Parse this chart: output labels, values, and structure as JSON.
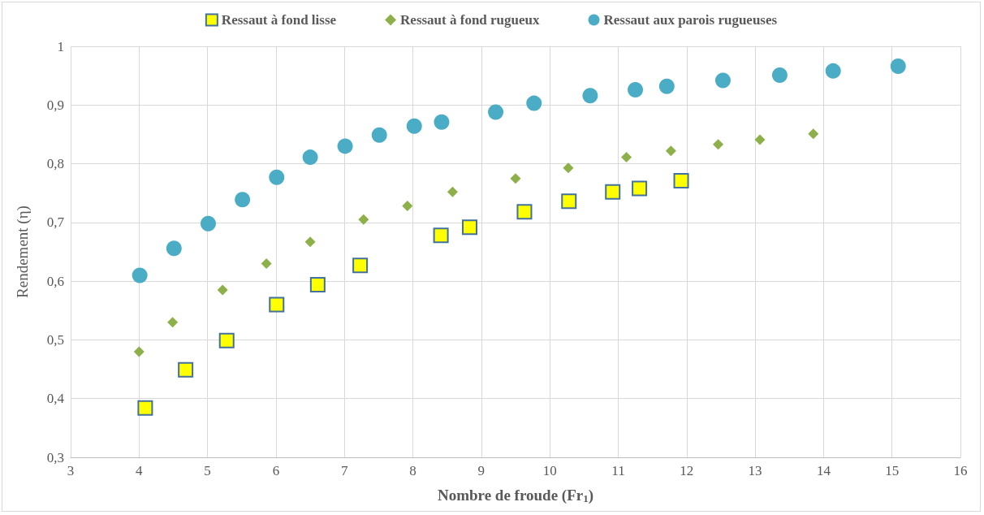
{
  "chart_data": {
    "type": "scatter",
    "xlabel": "Nombre de froude (Fr$_{1}$)",
    "ylabel": "Rendement (η)",
    "series": [
      {
        "name": "Ressaut à fond lisse",
        "color": "#ffff00",
        "marker": "square",
        "x": [
          4.09,
          4.68,
          5.28,
          6.01,
          6.61,
          7.23,
          8.41,
          8.83,
          9.63,
          10.28,
          10.92,
          11.31,
          11.92
        ],
        "values": [
          0.384,
          0.449,
          0.499,
          0.56,
          0.594,
          0.627,
          0.678,
          0.692,
          0.718,
          0.736,
          0.752,
          0.758,
          0.771
        ]
      },
      {
        "name": "Ressaut à fond rugueux",
        "color": "#8db04a",
        "marker": "diamond",
        "x": [
          4.0,
          4.49,
          5.22,
          5.86,
          6.5,
          7.28,
          7.92,
          8.58,
          9.5,
          10.27,
          11.12,
          11.77,
          12.46,
          13.07,
          13.85
        ],
        "values": [
          0.48,
          0.53,
          0.585,
          0.63,
          0.667,
          0.705,
          0.728,
          0.752,
          0.775,
          0.793,
          0.811,
          0.822,
          0.833,
          0.841,
          0.851
        ]
      },
      {
        "name": "Ressaut aux parois rugueuses",
        "color": "#4bacc6",
        "marker": "circle",
        "x": [
          4.01,
          4.51,
          5.01,
          5.51,
          6.01,
          6.5,
          7.01,
          7.51,
          8.02,
          8.42,
          9.21,
          9.77,
          10.59,
          11.25,
          11.71,
          12.53,
          13.36,
          14.14,
          15.09
        ],
        "values": [
          0.61,
          0.656,
          0.698,
          0.739,
          0.777,
          0.811,
          0.83,
          0.849,
          0.864,
          0.871,
          0.888,
          0.903,
          0.916,
          0.926,
          0.932,
          0.942,
          0.951,
          0.958,
          0.966
        ]
      }
    ],
    "xlim": [
      3,
      16
    ],
    "xticks": [
      3,
      4,
      5,
      6,
      7,
      8,
      9,
      10,
      11,
      12,
      13,
      14,
      15,
      16
    ],
    "ylim": [
      0.3,
      1
    ],
    "yticks": [
      {
        "value": 0.3,
        "label": "0,3"
      },
      {
        "value": 0.4,
        "label": "0,4"
      },
      {
        "value": 0.5,
        "label": "0,5"
      },
      {
        "value": 0.6,
        "label": "0,6"
      },
      {
        "value": 0.7,
        "label": "0,7"
      },
      {
        "value": 0.8,
        "label": "0,8"
      },
      {
        "value": 0.9,
        "label": "0,9"
      },
      1
    ],
    "grid": true,
    "legend": "top"
  }
}
